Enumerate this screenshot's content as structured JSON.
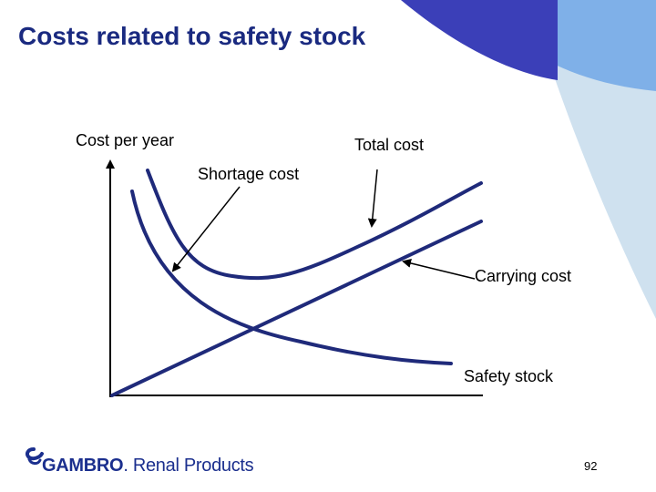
{
  "slide": {
    "title": "Costs related to safety stock",
    "page_number": "92"
  },
  "diagram": {
    "y_axis_label": "Cost per year",
    "x_axis_label": "Safety stock",
    "curves": {
      "total": "Total cost",
      "shortage": "Shortage cost",
      "carrying": "Carrying cost"
    }
  },
  "logo": {
    "brand": "GAMBRO",
    "suffix": "Renal Products"
  },
  "colors": {
    "title": "#1a2a80",
    "curve": "#1f2a7a",
    "deco_dark": "#3b3fb8",
    "deco_mid": "#7fb0e8",
    "deco_light": "#cfe1ef",
    "logo": "#1b2f8e"
  }
}
